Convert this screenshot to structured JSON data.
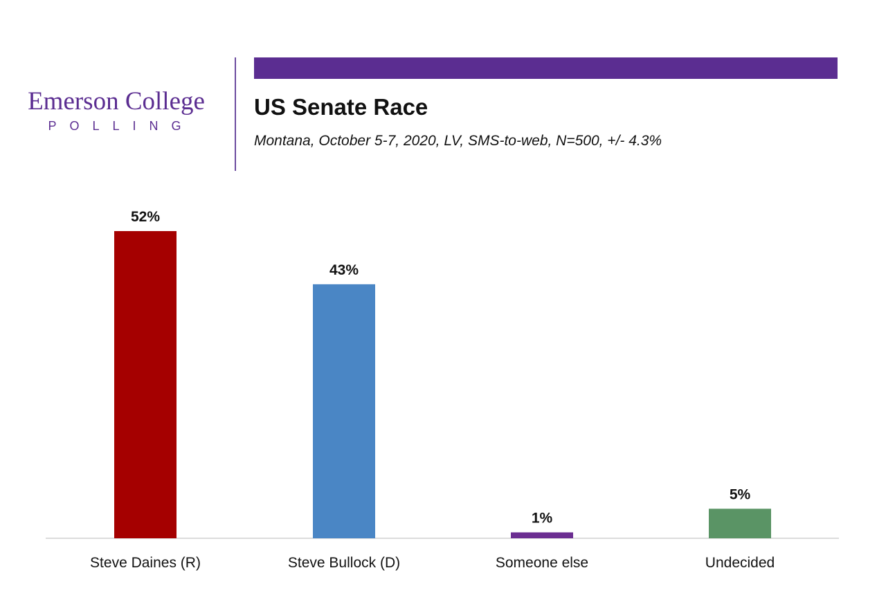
{
  "logo": {
    "name": "Emerson College",
    "sub": "POLLING"
  },
  "colors": {
    "brand": "#5b2d91"
  },
  "chart_data": {
    "type": "bar",
    "title": "US Senate Race",
    "subtitle": "Montana, October 5-7, 2020, LV, SMS-to-web, N=500, +/-  4.3%",
    "categories": [
      "Steve Daines (R)",
      "Steve Bullock (D)",
      "Someone else",
      "Undecided"
    ],
    "values": [
      52,
      43,
      1,
      5
    ],
    "value_labels": [
      "52%",
      "43%",
      "1%",
      "5%"
    ],
    "colors": [
      "#a50000",
      "#4a86c5",
      "#6b2d91",
      "#5a9465"
    ],
    "ylim": [
      0,
      52
    ],
    "grid": false,
    "legend": "none"
  }
}
